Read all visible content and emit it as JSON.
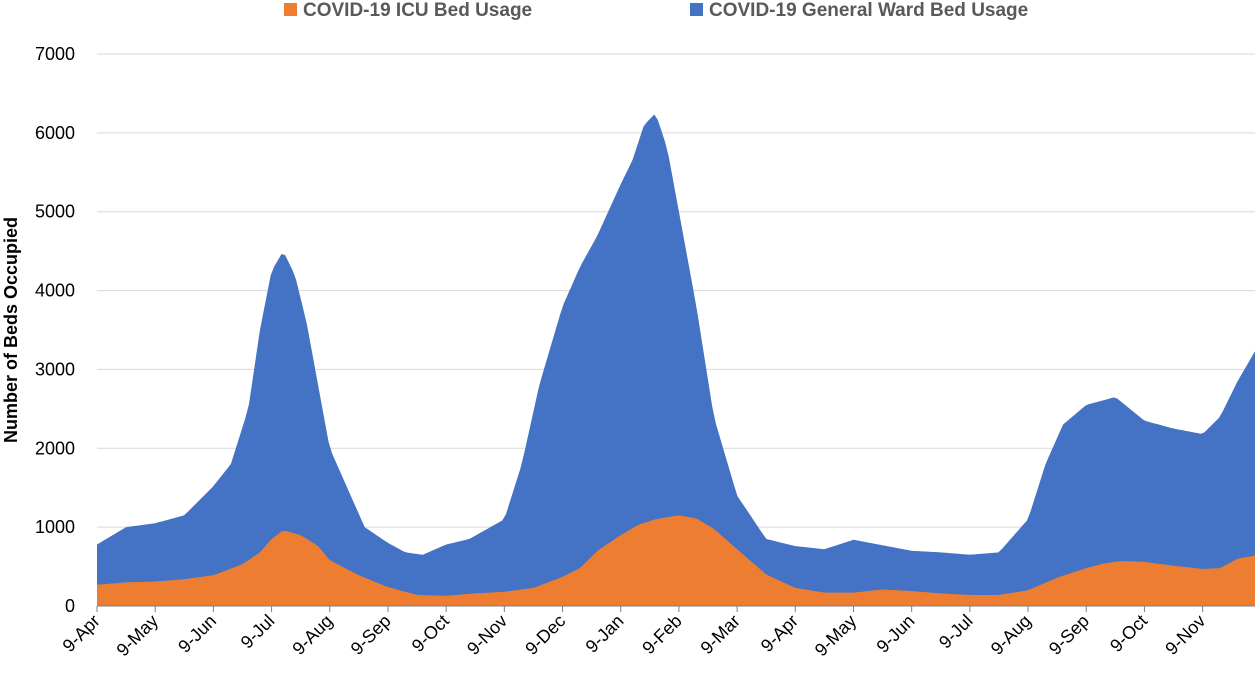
{
  "chart_data": {
    "type": "area",
    "title": "",
    "xlabel": "",
    "ylabel": "Number of Beds Occupied",
    "ylim": [
      0,
      7000
    ],
    "y_ticks": [
      "0",
      "1000",
      "2000",
      "3000",
      "4000",
      "5000",
      "6000",
      "7000"
    ],
    "x_tick_labels": [
      "9-Apr",
      "9-May",
      "9-Jun",
      "9-Jul",
      "9-Aug",
      "9-Sep",
      "9-Oct",
      "9-Nov",
      "9-Dec",
      "9-Jan",
      "9-Feb",
      "9-Mar",
      "9-Apr",
      "9-May",
      "9-Jun",
      "9-Jul",
      "9-Aug",
      "9-Sep",
      "9-Oct",
      "9-Nov"
    ],
    "x_unit": "months since 9-Apr",
    "stacked": true,
    "grid": "horizontal",
    "legend_position": "top",
    "series": [
      {
        "name": "COVID-19 ICU Bed Usage",
        "color": "#ED7D31",
        "x": [
          0,
          0.5,
          1,
          1.5,
          2,
          2.5,
          2.8,
          3,
          3.2,
          3.5,
          3.8,
          4,
          4.5,
          5,
          5.5,
          6,
          6.5,
          7,
          7.5,
          8,
          8.3,
          8.6,
          9,
          9.3,
          9.6,
          10,
          10.3,
          10.6,
          11,
          11.5,
          12,
          12.5,
          13,
          13.5,
          14,
          14.5,
          15,
          15.5,
          16,
          16.5,
          17,
          17.3,
          17.6,
          18,
          18.5,
          19,
          19.3,
          19.6,
          19.9
        ],
        "values": [
          270,
          300,
          310,
          340,
          390,
          530,
          680,
          850,
          960,
          900,
          760,
          580,
          390,
          240,
          140,
          130,
          160,
          180,
          230,
          370,
          480,
          700,
          900,
          1030,
          1100,
          1150,
          1110,
          980,
          720,
          400,
          230,
          170,
          170,
          210,
          190,
          160,
          140,
          140,
          200,
          360,
          480,
          540,
          570,
          560,
          510,
          470,
          480,
          600,
          640
        ]
      },
      {
        "name": "COVID-19 General Ward Bed Usage",
        "color": "#4472C4",
        "x": [
          0,
          0.5,
          1,
          1.5,
          2,
          2.3,
          2.6,
          2.8,
          3,
          3.2,
          3.4,
          3.6,
          3.8,
          4,
          4.3,
          4.6,
          5,
          5.3,
          5.6,
          6,
          6.4,
          7,
          7.3,
          7.6,
          8,
          8.3,
          8.6,
          9,
          9.2,
          9.4,
          9.6,
          9.8,
          10,
          10.3,
          10.6,
          11,
          11.5,
          12,
          12.5,
          13,
          13.5,
          14,
          14.5,
          15,
          15.5,
          16,
          16.3,
          16.6,
          17,
          17.5,
          18,
          18.5,
          19,
          19.3,
          19.6,
          19.9
        ],
        "values": [
          780,
          1000,
          1050,
          1150,
          1520,
          1800,
          2500,
          3500,
          4250,
          4500,
          4200,
          3600,
          2800,
          2000,
          1500,
          1000,
          800,
          680,
          650,
          780,
          850,
          1100,
          1800,
          2800,
          3800,
          4300,
          4700,
          5350,
          5650,
          6100,
          6250,
          5800,
          5000,
          3800,
          2400,
          1400,
          850,
          760,
          720,
          840,
          770,
          700,
          680,
          650,
          680,
          1100,
          1800,
          2300,
          2550,
          2650,
          2350,
          2250,
          2180,
          2400,
          2850,
          3230
        ]
      }
    ]
  }
}
